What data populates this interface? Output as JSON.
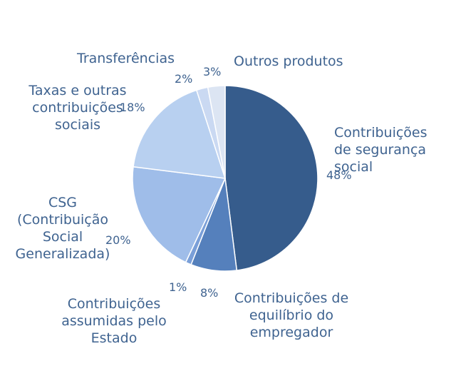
{
  "chart_data": {
    "type": "pie",
    "title": "",
    "slices": [
      {
        "label": "Contribuições\nde segurança\nsocial",
        "value": 48,
        "pct_label": "48%",
        "color": "#365c8c"
      },
      {
        "label": "Contribuições de\nequilíbrio do\nempregador",
        "value": 8,
        "pct_label": "8%",
        "color": "#5580bc"
      },
      {
        "label": "Contribuições\nassumidas pelo\nEstado",
        "value": 1,
        "pct_label": "1%",
        "color": "#7a9fd8"
      },
      {
        "label": "CSG\n(Contribuição\nSocial\nGeneralizada)",
        "value": 20,
        "pct_label": "20%",
        "color": "#9fbde9"
      },
      {
        "label": "Taxas e outras\ncontribuições\nsociais",
        "value": 18,
        "pct_label": "18%",
        "color": "#b8d0f0"
      },
      {
        "label": "Transferências",
        "value": 2,
        "pct_label": "2%",
        "color": "#cad9f2"
      },
      {
        "label": "Outros produtos",
        "value": 3,
        "pct_label": "3%",
        "color": "#dce5f3"
      }
    ]
  }
}
